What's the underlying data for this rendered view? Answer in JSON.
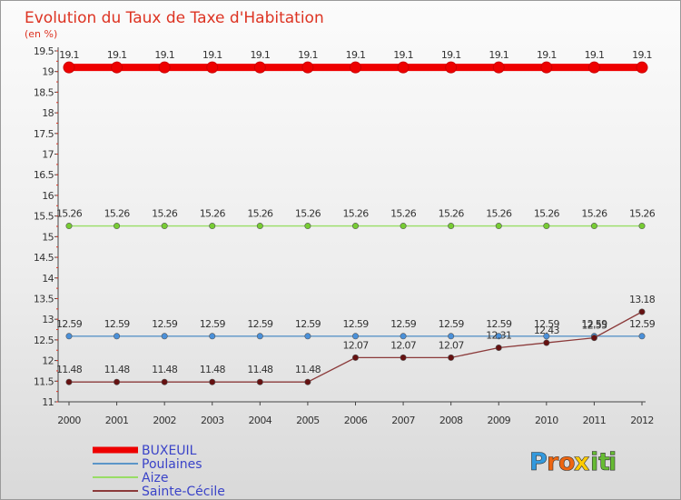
{
  "chart_data": {
    "type": "line",
    "title": "Evolution du Taux de Taxe d'Habitation",
    "subtitle": "(en %)",
    "xlabel": "",
    "ylabel": "",
    "categories": [
      "2000",
      "2001",
      "2002",
      "2003",
      "2004",
      "2005",
      "2006",
      "2007",
      "2008",
      "2009",
      "2010",
      "2011",
      "2012"
    ],
    "ylim": [
      11,
      19.5
    ],
    "yticks": [
      11,
      11.5,
      12,
      12.5,
      13,
      13.5,
      14,
      14.5,
      15,
      15.5,
      16,
      16.5,
      17,
      17.5,
      18,
      18.5,
      19,
      19.5
    ],
    "ytick_labels": [
      "11",
      "11.5",
      "12",
      "12.5",
      "13",
      "13.5",
      "14",
      "14.5",
      "15",
      "15.5",
      "16",
      "16.5",
      "17",
      "17.5",
      "18",
      "18.5",
      "19",
      "19.5"
    ],
    "legend_position": "bottom-left",
    "series": [
      {
        "name": "BUXEUIL",
        "color": "#ee0000",
        "marker_fill": "#ee0000",
        "values": [
          19.1,
          19.1,
          19.1,
          19.1,
          19.1,
          19.1,
          19.1,
          19.1,
          19.1,
          19.1,
          19.1,
          19.1,
          19.1
        ],
        "labels": [
          "19.1",
          "19.1",
          "19.1",
          "19.1",
          "19.1",
          "19.1",
          "19.1",
          "19.1",
          "19.1",
          "19.1",
          "19.1",
          "19.1",
          "19.1"
        ]
      },
      {
        "name": "Poulaines",
        "color": "#5b95c8",
        "marker_fill": "#4a90d9",
        "values": [
          12.59,
          12.59,
          12.59,
          12.59,
          12.59,
          12.59,
          12.59,
          12.59,
          12.59,
          12.59,
          12.59,
          12.59,
          12.59
        ],
        "labels": [
          "12.59",
          "12.59",
          "12.59",
          "12.59",
          "12.59",
          "12.59",
          "12.59",
          "12.59",
          "12.59",
          "12.59",
          "12.59",
          "12.59",
          "12.59"
        ]
      },
      {
        "name": "Aize",
        "color": "#99dd66",
        "marker_fill": "#77cc33",
        "values": [
          15.26,
          15.26,
          15.26,
          15.26,
          15.26,
          15.26,
          15.26,
          15.26,
          15.26,
          15.26,
          15.26,
          15.26,
          15.26
        ],
        "labels": [
          "15.26",
          "15.26",
          "15.26",
          "15.26",
          "15.26",
          "15.26",
          "15.26",
          "15.26",
          "15.26",
          "15.26",
          "15.26",
          "15.26",
          "15.26"
        ]
      },
      {
        "name": "Sainte-Cécile",
        "color": "#8b3a3a",
        "marker_fill": "#661111",
        "values": [
          11.48,
          11.48,
          11.48,
          11.48,
          11.48,
          11.48,
          12.07,
          12.07,
          12.07,
          12.31,
          12.43,
          12.55,
          13.18
        ],
        "labels": [
          "11.48",
          "11.48",
          "11.48",
          "11.48",
          "11.48",
          "11.48",
          "12.07",
          "12.07",
          "12.07",
          "12.31",
          "12.43",
          "12.55",
          "13.18"
        ]
      }
    ]
  },
  "logo": {
    "letters": [
      "P",
      "r",
      "o",
      "x",
      "i",
      "t",
      "i"
    ],
    "colors": [
      "#3399dd",
      "#ee6611",
      "#ee6611",
      "#ffcc00",
      "#66bb33",
      "#66bb33",
      "#66bb33"
    ]
  }
}
